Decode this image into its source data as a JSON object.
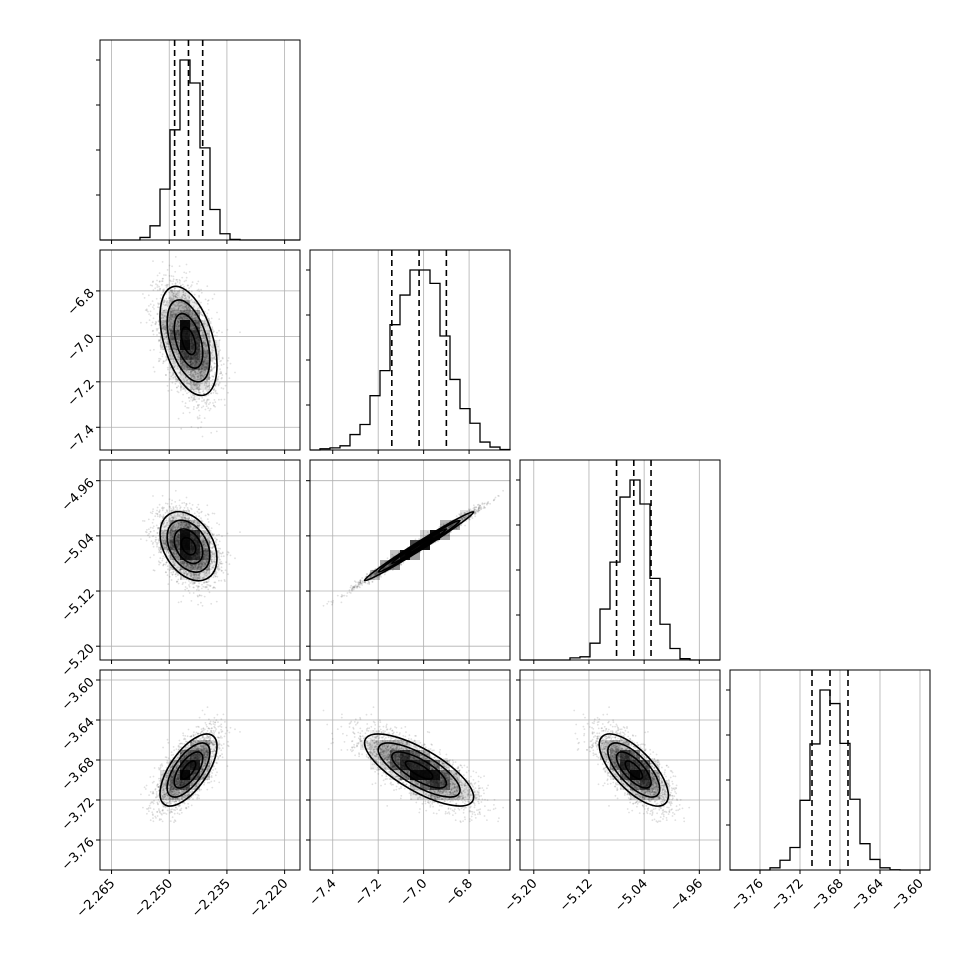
{
  "chart_data": {
    "type": "corner",
    "parameters": [
      {
        "median": -2.245,
        "sigma": 0.0037,
        "range": [
          -2.268,
          -2.216
        ],
        "ticks": [
          -2.265,
          -2.25,
          -2.235,
          -2.22
        ],
        "tick_labels": [
          "−2.265",
          "−2.250",
          "−2.235",
          "−2.220"
        ],
        "quantiles": [
          -2.2486,
          -2.245,
          -2.2413
        ]
      },
      {
        "median": -7.02,
        "sigma": 0.12,
        "range": [
          -7.5,
          -6.62
        ],
        "ticks": [
          -7.4,
          -7.2,
          -7.0,
          -6.8
        ],
        "tick_labels": [
          "−7.4",
          "−7.2",
          "−7.0",
          "−6.8"
        ],
        "quantiles": [
          -7.14,
          -7.02,
          -6.9
        ]
      },
      {
        "median": -5.055,
        "sigma": 0.025,
        "range": [
          -5.22,
          -4.93
        ],
        "ticks": [
          -5.2,
          -5.12,
          -5.04,
          -4.96
        ],
        "tick_labels": [
          "−5.20",
          "−5.12",
          "−5.04",
          "−4.96"
        ],
        "quantiles": [
          -5.08,
          -5.055,
          -5.03
        ]
      },
      {
        "median": -3.69,
        "sigma": 0.018,
        "range": [
          -3.79,
          -3.59
        ],
        "ticks": [
          -3.76,
          -3.72,
          -3.68,
          -3.64,
          -3.6
        ],
        "tick_labels": [
          "−3.76",
          "−3.72",
          "−3.68",
          "−3.64",
          "−3.60"
        ],
        "quantiles": [
          -3.708,
          -3.69,
          -3.672
        ]
      }
    ],
    "correlations": [
      [
        1.0,
        -0.45,
        -0.35,
        0.65
      ],
      [
        -0.45,
        1.0,
        0.99,
        -0.75
      ],
      [
        -0.35,
        0.99,
        1.0,
        -0.7
      ],
      [
        0.65,
        -0.75,
        -0.7,
        1.0
      ]
    ],
    "quantile_levels": [
      0.16,
      0.5,
      0.84
    ],
    "grid": true
  },
  "colors": {
    "frame": "#000000",
    "grid": "#b0b0b0",
    "points": "#555555",
    "density": "#000000"
  }
}
